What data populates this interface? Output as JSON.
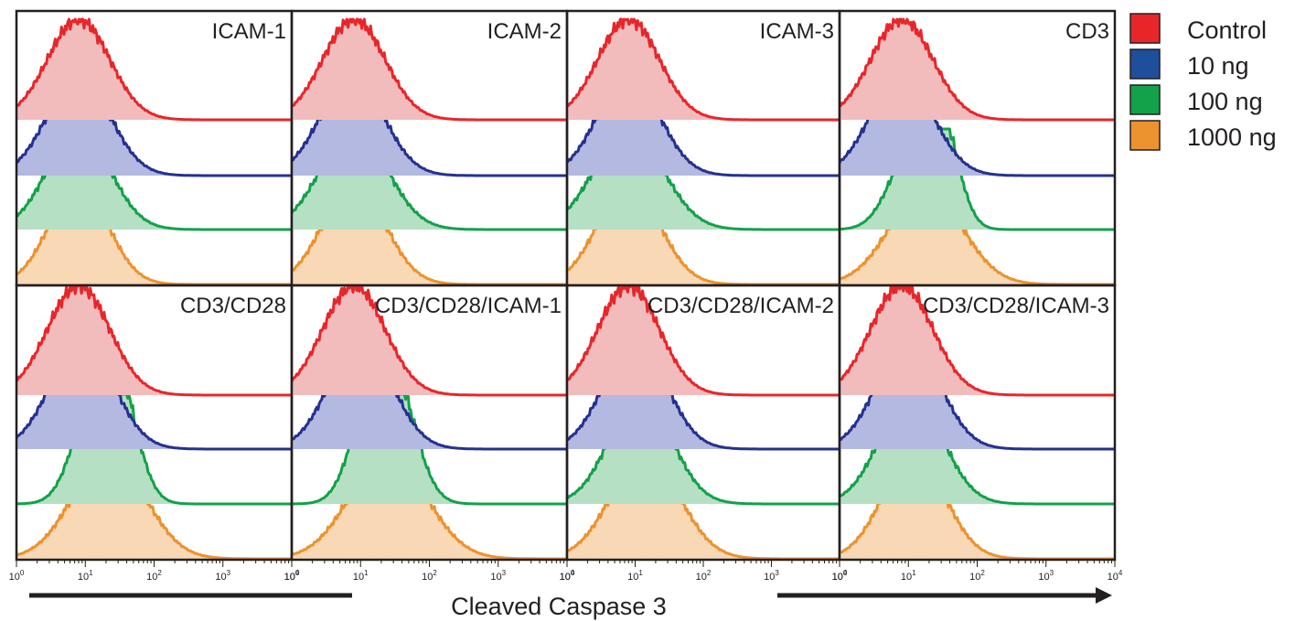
{
  "chart_data": {
    "type": "area",
    "xlabel": "Cleaved Caspase 3",
    "x_scale": "log",
    "xlim": [
      1,
      10000
    ],
    "x_ticks": [
      {
        "base": "10",
        "exp": "0"
      },
      {
        "base": "10",
        "exp": "1"
      },
      {
        "base": "10",
        "exp": "2"
      },
      {
        "base": "10",
        "exp": "3"
      },
      {
        "base": "10",
        "exp": "4"
      }
    ],
    "legend": {
      "position": "right",
      "entries": [
        {
          "name": "Control",
          "color": "#e8262a"
        },
        {
          "name": "10 ng",
          "color": "#1f4e9b"
        },
        {
          "name": "100 ng",
          "color": "#13a14a"
        },
        {
          "name": "1000 ng",
          "color": "#ec922e"
        }
      ]
    },
    "series_styles": [
      {
        "name": "Control",
        "stroke": "#e8262a",
        "fill": "#f2bcbd"
      },
      {
        "name": "10 ng",
        "stroke": "#25318f",
        "fill": "#b3b9e0"
      },
      {
        "name": "100 ng",
        "stroke": "#13a14a",
        "fill": "#b6e0c3"
      },
      {
        "name": "1000 ng",
        "stroke": "#ec922e",
        "fill": "#f8d8b5"
      }
    ],
    "panels": [
      {
        "label": "ICAM-1",
        "peaks": [
          [
            [
              8,
              1,
              0.45
            ]
          ],
          [
            [
              8,
              1,
              0.45
            ]
          ],
          [
            [
              8,
              1,
              0.45
            ]
          ],
          [
            [
              8,
              1,
              0.42
            ]
          ]
        ]
      },
      {
        "label": "ICAM-2",
        "peaks": [
          [
            [
              8,
              1,
              0.45
            ]
          ],
          [
            [
              7.5,
              1,
              0.45
            ]
          ],
          [
            [
              8,
              1,
              0.48
            ]
          ],
          [
            [
              8,
              1,
              0.45
            ]
          ]
        ]
      },
      {
        "label": "ICAM-3",
        "peaks": [
          [
            [
              8,
              1,
              0.45
            ]
          ],
          [
            [
              8,
              1,
              0.45
            ]
          ],
          [
            [
              8,
              1,
              0.5
            ]
          ],
          [
            [
              8,
              1,
              0.45
            ]
          ]
        ]
      },
      {
        "label": "CD3",
        "peaks": [
          [
            [
              8,
              1,
              0.45
            ]
          ],
          [
            [
              8,
              1,
              0.45
            ]
          ],
          [
            [
              11,
              0.75,
              0.32
            ],
            [
              30,
              0.95,
              0.25
            ]
          ],
          [
            [
              18,
              0.95,
              0.52
            ]
          ]
        ]
      },
      {
        "label": "CD3/CD28",
        "peaks": [
          [
            [
              8,
              1,
              0.45
            ]
          ],
          [
            [
              9,
              1,
              0.45
            ]
          ],
          [
            [
              13,
              0.82,
              0.3
            ],
            [
              30,
              0.95,
              0.28
            ]
          ],
          [
            [
              22,
              0.95,
              0.52
            ]
          ]
        ]
      },
      {
        "label": "CD3/CD28/ICAM-1",
        "peaks": [
          [
            [
              8,
              1,
              0.45
            ]
          ],
          [
            [
              10,
              1,
              0.45
            ]
          ],
          [
            [
              15,
              0.9,
              0.3
            ],
            [
              35,
              0.82,
              0.3
            ]
          ],
          [
            [
              25,
              0.95,
              0.55
            ]
          ]
        ]
      },
      {
        "label": "CD3/CD28/ICAM-2",
        "peaks": [
          [
            [
              8,
              1,
              0.45
            ]
          ],
          [
            [
              10,
              1,
              0.45
            ]
          ],
          [
            [
              12,
              1,
              0.45
            ]
          ],
          [
            [
              14,
              0.95,
              0.5
            ]
          ]
        ]
      },
      {
        "label": "CD3/CD28/ICAM-3",
        "peaks": [
          [
            [
              8,
              1,
              0.45
            ]
          ],
          [
            [
              10,
              1,
              0.45
            ]
          ],
          [
            [
              11,
              1,
              0.45
            ]
          ],
          [
            [
              12,
              0.95,
              0.45
            ]
          ]
        ]
      }
    ]
  }
}
